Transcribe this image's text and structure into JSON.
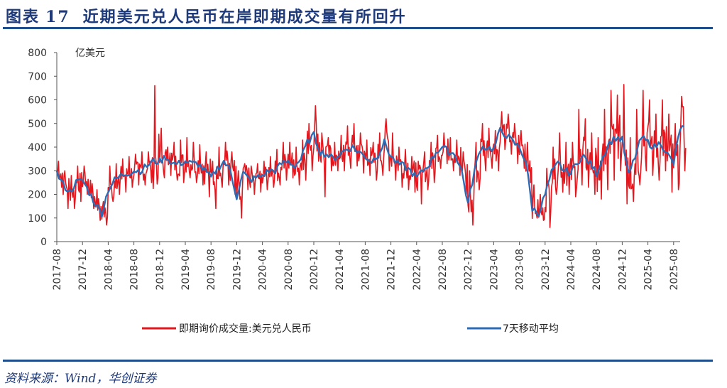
{
  "header": {
    "label": "图表",
    "number": "17",
    "title": "近期美元兑人民币在岸即期成交量有所回升"
  },
  "source": "资料来源：Wind，华创证券",
  "chart_data": {
    "type": "line",
    "unit_label": "亿美元",
    "ylim": [
      0,
      800
    ],
    "yticks": [
      0,
      100,
      200,
      300,
      400,
      500,
      600,
      700,
      800
    ],
    "xtick_labels": [
      "2017-08",
      "2017-12",
      "2018-04",
      "2018-08",
      "2018-12",
      "2019-04",
      "2019-08",
      "2019-12",
      "2020-04",
      "2020-08",
      "2020-12",
      "2021-04",
      "2021-08",
      "2021-12",
      "2022-04",
      "2022-08",
      "2022-12",
      "2023-04",
      "2023-08",
      "2023-12",
      "2024-04",
      "2024-08",
      "2024-12",
      "2025-04",
      "2025-08"
    ],
    "grid": false,
    "legend_position": "bottom",
    "months": [
      "2017-08",
      "2017-09",
      "2017-10",
      "2017-11",
      "2017-12",
      "2018-01",
      "2018-02",
      "2018-03",
      "2018-04",
      "2018-05",
      "2018-06",
      "2018-07",
      "2018-08",
      "2018-09",
      "2018-10",
      "2018-11",
      "2018-12",
      "2019-01",
      "2019-02",
      "2019-03",
      "2019-04",
      "2019-05",
      "2019-06",
      "2019-07",
      "2019-08",
      "2019-09",
      "2019-10",
      "2019-11",
      "2019-12",
      "2020-01",
      "2020-02",
      "2020-03",
      "2020-04",
      "2020-05",
      "2020-06",
      "2020-07",
      "2020-08",
      "2020-09",
      "2020-10",
      "2020-11",
      "2020-12",
      "2021-01",
      "2021-02",
      "2021-03",
      "2021-04",
      "2021-05",
      "2021-06",
      "2021-07",
      "2021-08",
      "2021-09",
      "2021-10",
      "2021-11",
      "2021-12",
      "2022-01",
      "2022-02",
      "2022-03",
      "2022-04",
      "2022-05",
      "2022-06",
      "2022-07",
      "2022-08",
      "2022-09",
      "2022-10",
      "2022-11",
      "2022-12",
      "2023-01",
      "2023-02",
      "2023-03",
      "2023-04",
      "2023-05",
      "2023-06",
      "2023-07",
      "2023-08",
      "2023-09",
      "2023-10",
      "2023-11",
      "2023-12",
      "2024-01",
      "2024-02",
      "2024-03",
      "2024-04",
      "2024-05",
      "2024-06",
      "2024-07",
      "2024-08",
      "2024-09",
      "2024-10",
      "2024-11",
      "2024-12",
      "2025-01",
      "2025-02",
      "2025-03",
      "2025-04",
      "2025-05",
      "2025-06",
      "2025-07",
      "2025-08",
      "2025-09"
    ],
    "series": [
      {
        "name": "即期询价成交量:美元兑人民币",
        "color": "#e3171d",
        "high": [
          340,
          300,
          280,
          320,
          320,
          260,
          220,
          170,
          320,
          330,
          350,
          360,
          370,
          380,
          380,
          660,
          480,
          400,
          420,
          430,
          440,
          420,
          410,
          380,
          340,
          400,
          420,
          380,
          300,
          330,
          320,
          330,
          340,
          360,
          390,
          420,
          420,
          400,
          430,
          500,
          575,
          460,
          440,
          420,
          450,
          490,
          500,
          460,
          430,
          420,
          460,
          520,
          460,
          400,
          390,
          360,
          340,
          380,
          420,
          450,
          460,
          440,
          430,
          380,
          300,
          420,
          500,
          480,
          470,
          550,
          540,
          500,
          470,
          420,
          240,
          200,
          310,
          400,
          460,
          420,
          420,
          560,
          520,
          460,
          440,
          560,
          640,
          620,
          665,
          440,
          560,
          640,
          600,
          540,
          600,
          540,
          500,
          615
        ],
        "low": [
          230,
          140,
          140,
          170,
          200,
          140,
          90,
          70,
          170,
          200,
          210,
          230,
          240,
          240,
          250,
          270,
          270,
          280,
          260,
          250,
          270,
          250,
          240,
          190,
          140,
          230,
          240,
          200,
          100,
          220,
          200,
          210,
          220,
          230,
          240,
          260,
          270,
          240,
          260,
          300,
          340,
          190,
          300,
          300,
          300,
          310,
          320,
          290,
          280,
          260,
          280,
          300,
          260,
          230,
          220,
          210,
          160,
          220,
          250,
          310,
          330,
          300,
          280,
          200,
          70,
          220,
          300,
          310,
          300,
          390,
          370,
          330,
          310,
          250,
          100,
          90,
          60,
          200,
          210,
          200,
          190,
          240,
          230,
          200,
          180,
          220,
          260,
          300,
          160,
          170,
          240,
          300,
          280,
          260,
          300,
          210,
          220,
          300
        ]
      },
      {
        "name": "7天移动平均",
        "color": "#2e6bb5",
        "values": [
          290,
          240,
          210,
          250,
          260,
          210,
          160,
          120,
          220,
          260,
          280,
          290,
          300,
          300,
          320,
          340,
          340,
          360,
          330,
          330,
          340,
          330,
          330,
          300,
          270,
          310,
          340,
          300,
          190,
          290,
          260,
          270,
          280,
          300,
          300,
          330,
          340,
          320,
          350,
          420,
          450,
          380,
          370,
          350,
          370,
          390,
          400,
          380,
          360,
          340,
          370,
          420,
          360,
          330,
          320,
          300,
          270,
          300,
          330,
          380,
          400,
          380,
          370,
          300,
          160,
          300,
          400,
          400,
          390,
          470,
          450,
          420,
          400,
          340,
          140,
          120,
          200,
          290,
          330,
          300,
          290,
          340,
          360,
          330,
          290,
          360,
          420,
          440,
          430,
          280,
          360,
          440,
          420,
          400,
          420,
          370,
          330,
          480
        ]
      }
    ]
  }
}
